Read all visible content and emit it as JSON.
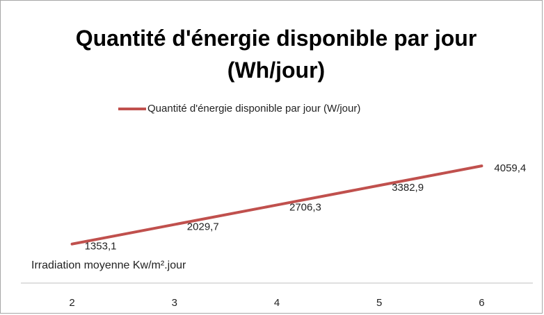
{
  "chart_data": {
    "type": "line",
    "title": "Quantité d'énergie disponible par jour (Wh/jour)",
    "x_label": "Irradiation moyenne Kw/m².jour",
    "categories": [
      "2",
      "3",
      "4",
      "5",
      "6"
    ],
    "series": [
      {
        "name": "Quantité d'énergie disponible par jour (W/jour)",
        "color": "#c0504d",
        "values": [
          1353.1,
          2029.7,
          2706.3,
          3382.9,
          4059.4
        ],
        "value_labels": [
          "1353,1",
          "2029,7",
          "2706,3",
          "3382,9",
          "4059,4"
        ]
      }
    ],
    "ylim": [
      0,
      5000
    ],
    "legend": "top"
  }
}
